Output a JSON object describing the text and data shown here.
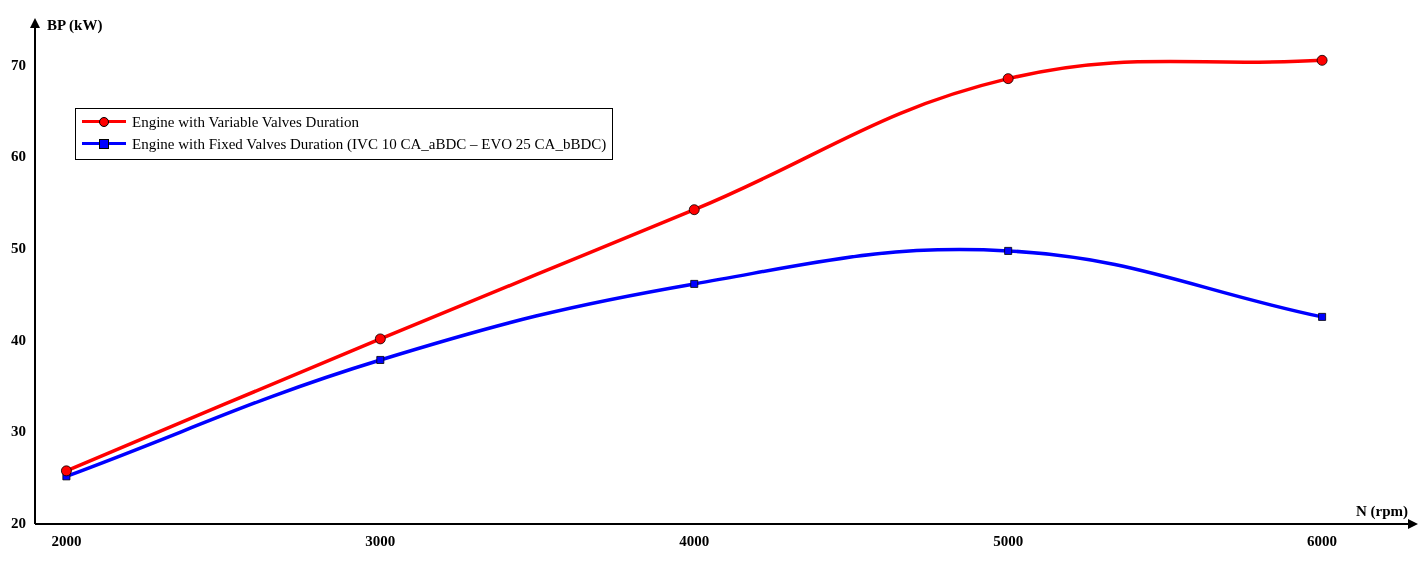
{
  "chart_data": {
    "type": "line",
    "xlabel": "N (rpm)",
    "ylabel": "BP (kW)",
    "x": [
      2000,
      3000,
      4000,
      5000,
      6000
    ],
    "series": [
      {
        "name": "Engine with Variable Valves Duration",
        "color": "#ff0000",
        "marker": "circle",
        "values": [
          25.8,
          40.2,
          54.3,
          68.6,
          70.6
        ]
      },
      {
        "name": "Engine with Fixed Valves Duration (IVC 10 CA_aBDC – EVO 25 CA_bBDC)",
        "color": "#0000ff",
        "marker": "square",
        "values": [
          25.2,
          37.9,
          46.2,
          49.8,
          42.6
        ]
      }
    ],
    "xlim": [
      1900,
      6280
    ],
    "ylim": [
      20,
      75
    ],
    "xticks": [
      2000,
      3000,
      4000,
      5000,
      6000
    ],
    "yticks": [
      20,
      30,
      40,
      50,
      60,
      70
    ],
    "grid": false,
    "legend": "top left",
    "line_style": "solid"
  }
}
